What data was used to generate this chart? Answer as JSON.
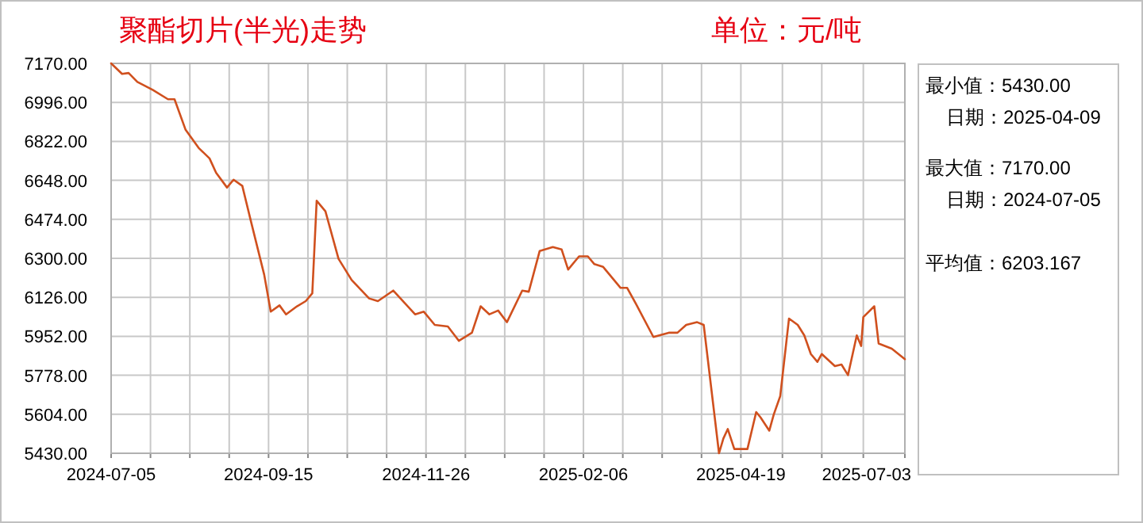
{
  "chart_data": {
    "type": "line",
    "title": "聚酯切片(半光)走势",
    "ylabel": "单位：元/吨",
    "annotations": [
      "最小值：5430.00",
      "日期：2025-04-09",
      "最大值：7170.00",
      "日期：2024-07-05",
      "平均值：6203.167"
    ],
    "xlim": [
      "2024-07-05",
      "2025-07-03"
    ],
    "xticks": [
      "2024-07-05",
      {
        "value": "2024-07-23",
        "label": null
      },
      {
        "value": "2024-08-10",
        "label": null
      },
      {
        "value": "2024-08-28",
        "label": null
      },
      "2024-09-15",
      {
        "value": "2024-10-03",
        "label": null
      },
      {
        "value": "2024-10-21",
        "label": null
      },
      {
        "value": "2024-11-08",
        "label": null
      },
      "2024-11-26",
      {
        "value": "2024-12-14",
        "label": null
      },
      {
        "value": "2025-01-01",
        "label": null
      },
      {
        "value": "2025-01-19",
        "label": null
      },
      "2025-02-06",
      {
        "value": "2025-02-24",
        "label": null
      },
      {
        "value": "2025-03-14",
        "label": null
      },
      {
        "value": "2025-04-01",
        "label": null
      },
      "2025-04-19",
      {
        "value": "2025-05-08",
        "label": null
      },
      {
        "value": "2025-05-26",
        "label": null
      },
      {
        "value": "2025-06-14",
        "label": null
      },
      "2025-07-03"
    ],
    "ylim": [
      5430,
      7170
    ],
    "yticks": [
      {
        "value": 5430,
        "label": "5430.00"
      },
      {
        "value": 5604,
        "label": "5604.00"
      },
      {
        "value": 5778,
        "label": "5778.00"
      },
      {
        "value": 5952,
        "label": "5952.00"
      },
      {
        "value": 6126,
        "label": "6126.00"
      },
      {
        "value": 6300,
        "label": "6300.00"
      },
      {
        "value": 6474,
        "label": "6474.00"
      },
      {
        "value": 6648,
        "label": "6648.00"
      },
      {
        "value": 6822,
        "label": "6822.00"
      },
      {
        "value": 6996,
        "label": "6996.00"
      },
      {
        "value": 7170,
        "label": "7170.00"
      }
    ],
    "grid": true,
    "marker": "none",
    "line_style": "solid",
    "series": [
      {
        "color": "#d0501e",
        "x": [
          "2024-07-05",
          "2024-07-10",
          "2024-07-13",
          "2024-07-17",
          "2024-07-24",
          "2024-07-31",
          "2024-08-03",
          "2024-08-08",
          "2024-08-14",
          "2024-08-19",
          "2024-08-22",
          "2024-08-27",
          "2024-08-30",
          "2024-09-03",
          "2024-09-07",
          "2024-09-13",
          "2024-09-16",
          "2024-09-20",
          "2024-09-23",
          "2024-09-28",
          "2024-10-02",
          "2024-10-05",
          "2024-10-07",
          "2024-10-11",
          "2024-10-17",
          "2024-10-23",
          "2024-10-31",
          "2024-11-04",
          "2024-11-11",
          "2024-11-15",
          "2024-11-21",
          "2024-11-25",
          "2024-11-30",
          "2024-12-06",
          "2024-12-11",
          "2024-12-17",
          "2024-12-21",
          "2024-12-25",
          "2024-12-29",
          "2025-01-02",
          "2025-01-09",
          "2025-01-12",
          "2025-01-17",
          "2025-01-23",
          "2025-01-27",
          "2025-01-30",
          "2025-02-04",
          "2025-02-08",
          "2025-02-11",
          "2025-02-15",
          "2025-02-16",
          "2025-02-23",
          "2025-02-26",
          "2025-03-02",
          "2025-03-10",
          "2025-03-17",
          "2025-03-21",
          "2025-03-25",
          "2025-03-30",
          "2025-04-02",
          "2025-04-09",
          "2025-04-11",
          "2025-04-13",
          "2025-04-16",
          "2025-04-22",
          "2025-04-26",
          "2025-04-28",
          "2025-05-02",
          "2025-05-04",
          "2025-05-07",
          "2025-05-11",
          "2025-05-15",
          "2025-05-18",
          "2025-05-21",
          "2025-05-24",
          "2025-05-26",
          "2025-06-01",
          "2025-06-04",
          "2025-06-07",
          "2025-06-11",
          "2025-06-13",
          "2025-06-14",
          "2025-06-19",
          "2025-06-21",
          "2025-06-27",
          "2025-07-03"
        ],
        "values": [
          7170,
          7123,
          7127,
          7087,
          7052,
          7010,
          7010,
          6875,
          6793,
          6746,
          6682,
          6616,
          6651,
          6623,
          6463,
          6227,
          6062,
          6090,
          6050,
          6086,
          6109,
          6144,
          6557,
          6510,
          6298,
          6203,
          6121,
          6109,
          6156,
          6114,
          6050,
          6062,
          6003,
          5996,
          5932,
          5968,
          6086,
          6050,
          6067,
          6015,
          6156,
          6151,
          6333,
          6350,
          6340,
          6250,
          6309,
          6309,
          6274,
          6262,
          6250,
          6168,
          6168,
          6097,
          5949,
          5968,
          5968,
          6003,
          6015,
          6003,
          5430,
          5496,
          5538,
          5449,
          5449,
          5614,
          5590,
          5531,
          5602,
          5685,
          6031,
          6003,
          5956,
          5873,
          5838,
          5873,
          5819,
          5826,
          5779,
          5956,
          5909,
          6038,
          6086,
          5920,
          5897,
          5850
        ]
      }
    ]
  }
}
